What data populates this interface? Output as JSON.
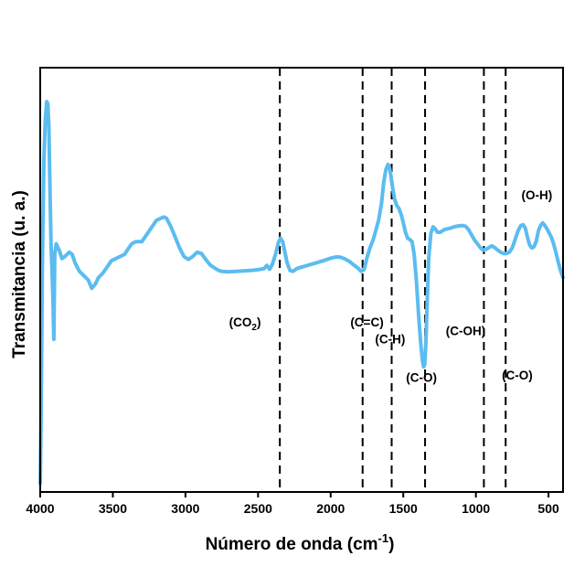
{
  "chart_data": {
    "type": "line",
    "xlabel": "Número de onda (cm",
    "xlabel_sup": "-1",
    "xlabel_end": ")",
    "ylabel": "Transmitancia (u. a.)",
    "xlim": [
      4000,
      400
    ],
    "x_reversed": true,
    "xticks": [
      4000,
      3500,
      3000,
      2500,
      2000,
      1500,
      1000,
      500
    ],
    "yticks_shown": false,
    "grid": false,
    "legend": "none",
    "colors": {
      "line": "#5bbcf0",
      "marker": "#000000"
    },
    "series": [
      {
        "points": [
          [
            4000,
            0.02
          ],
          [
            3995,
            0.15
          ],
          [
            3985,
            0.55
          ],
          [
            3975,
            0.78
          ],
          [
            3965,
            0.88
          ],
          [
            3955,
            0.92
          ],
          [
            3948,
            0.915
          ],
          [
            3940,
            0.86
          ],
          [
            3932,
            0.7
          ],
          [
            3925,
            0.58
          ],
          [
            3918,
            0.52
          ],
          [
            3912,
            0.45
          ],
          [
            3906,
            0.36
          ],
          [
            3900,
            0.56
          ],
          [
            3890,
            0.585
          ],
          [
            3870,
            0.57
          ],
          [
            3850,
            0.55
          ],
          [
            3830,
            0.555
          ],
          [
            3800,
            0.565
          ],
          [
            3780,
            0.56
          ],
          [
            3760,
            0.54
          ],
          [
            3730,
            0.52
          ],
          [
            3700,
            0.51
          ],
          [
            3670,
            0.5
          ],
          [
            3645,
            0.48
          ],
          [
            3620,
            0.49
          ],
          [
            3600,
            0.505
          ],
          [
            3570,
            0.515
          ],
          [
            3540,
            0.53
          ],
          [
            3510,
            0.545
          ],
          [
            3480,
            0.55
          ],
          [
            3450,
            0.555
          ],
          [
            3420,
            0.56
          ],
          [
            3400,
            0.57
          ],
          [
            3370,
            0.585
          ],
          [
            3340,
            0.59
          ],
          [
            3300,
            0.59
          ],
          [
            3270,
            0.605
          ],
          [
            3230,
            0.625
          ],
          [
            3200,
            0.64
          ],
          [
            3170,
            0.645
          ],
          [
            3150,
            0.648
          ],
          [
            3130,
            0.645
          ],
          [
            3100,
            0.625
          ],
          [
            3070,
            0.6
          ],
          [
            3040,
            0.575
          ],
          [
            3010,
            0.555
          ],
          [
            2980,
            0.548
          ],
          [
            2950,
            0.555
          ],
          [
            2920,
            0.565
          ],
          [
            2890,
            0.562
          ],
          [
            2860,
            0.548
          ],
          [
            2830,
            0.535
          ],
          [
            2800,
            0.528
          ],
          [
            2770,
            0.522
          ],
          [
            2750,
            0.52
          ],
          [
            2700,
            0.519
          ],
          [
            2650,
            0.52
          ],
          [
            2600,
            0.521
          ],
          [
            2550,
            0.522
          ],
          [
            2500,
            0.524
          ],
          [
            2460,
            0.526
          ],
          [
            2440,
            0.534
          ],
          [
            2420,
            0.525
          ],
          [
            2400,
            0.538
          ],
          [
            2380,
            0.56
          ],
          [
            2360,
            0.588
          ],
          [
            2345,
            0.598
          ],
          [
            2330,
            0.59
          ],
          [
            2315,
            0.565
          ],
          [
            2300,
            0.54
          ],
          [
            2280,
            0.522
          ],
          [
            2260,
            0.52
          ],
          [
            2230,
            0.527
          ],
          [
            2200,
            0.53
          ],
          [
            2150,
            0.535
          ],
          [
            2100,
            0.54
          ],
          [
            2050,
            0.545
          ],
          [
            2000,
            0.551
          ],
          [
            1960,
            0.554
          ],
          [
            1930,
            0.553
          ],
          [
            1900,
            0.549
          ],
          [
            1870,
            0.543
          ],
          [
            1840,
            0.535
          ],
          [
            1810,
            0.527
          ],
          [
            1790,
            0.52
          ],
          [
            1770,
            0.524
          ],
          [
            1750,
            0.552
          ],
          [
            1730,
            0.575
          ],
          [
            1710,
            0.592
          ],
          [
            1690,
            0.615
          ],
          [
            1670,
            0.64
          ],
          [
            1650,
            0.68
          ],
          [
            1635,
            0.73
          ],
          [
            1620,
            0.76
          ],
          [
            1605,
            0.772
          ],
          [
            1595,
            0.765
          ],
          [
            1585,
            0.745
          ],
          [
            1575,
            0.72
          ],
          [
            1560,
            0.69
          ],
          [
            1545,
            0.675
          ],
          [
            1530,
            0.668
          ],
          [
            1515,
            0.655
          ],
          [
            1500,
            0.635
          ],
          [
            1485,
            0.612
          ],
          [
            1470,
            0.598
          ],
          [
            1455,
            0.595
          ],
          [
            1440,
            0.59
          ],
          [
            1425,
            0.56
          ],
          [
            1410,
            0.5
          ],
          [
            1395,
            0.42
          ],
          [
            1380,
            0.35
          ],
          [
            1368,
            0.31
          ],
          [
            1360,
            0.295
          ],
          [
            1352,
            0.3
          ],
          [
            1345,
            0.35
          ],
          [
            1335,
            0.45
          ],
          [
            1325,
            0.55
          ],
          [
            1310,
            0.61
          ],
          [
            1295,
            0.625
          ],
          [
            1280,
            0.62
          ],
          [
            1265,
            0.612
          ],
          [
            1245,
            0.612
          ],
          [
            1225,
            0.617
          ],
          [
            1200,
            0.62
          ],
          [
            1175,
            0.622
          ],
          [
            1150,
            0.625
          ],
          [
            1120,
            0.627
          ],
          [
            1095,
            0.628
          ],
          [
            1070,
            0.626
          ],
          [
            1050,
            0.618
          ],
          [
            1030,
            0.606
          ],
          [
            1010,
            0.594
          ],
          [
            990,
            0.585
          ],
          [
            970,
            0.576
          ],
          [
            950,
            0.57
          ],
          [
            930,
            0.572
          ],
          [
            910,
            0.576
          ],
          [
            890,
            0.58
          ],
          [
            870,
            0.576
          ],
          [
            850,
            0.57
          ],
          [
            830,
            0.565
          ],
          [
            810,
            0.562
          ],
          [
            790,
            0.562
          ],
          [
            770,
            0.565
          ],
          [
            750,
            0.575
          ],
          [
            730,
            0.595
          ],
          [
            710,
            0.615
          ],
          [
            690,
            0.628
          ],
          [
            675,
            0.63
          ],
          [
            660,
            0.622
          ],
          [
            645,
            0.6
          ],
          [
            630,
            0.582
          ],
          [
            615,
            0.575
          ],
          [
            600,
            0.578
          ],
          [
            585,
            0.59
          ],
          [
            570,
            0.615
          ],
          [
            555,
            0.628
          ],
          [
            540,
            0.634
          ],
          [
            525,
            0.628
          ],
          [
            510,
            0.62
          ],
          [
            495,
            0.61
          ],
          [
            480,
            0.6
          ],
          [
            465,
            0.585
          ],
          [
            450,
            0.565
          ],
          [
            435,
            0.545
          ],
          [
            420,
            0.525
          ],
          [
            405,
            0.51
          ],
          [
            400,
            0.505
          ]
        ]
      }
    ],
    "markers": [
      {
        "x": 2350,
        "label_main": "(CO",
        "label_sub": "2",
        "label_end": ")",
        "label_x": 2590,
        "label_y": 0.39
      },
      {
        "x": 1780,
        "label_main": "(C=C)",
        "label_sub": "",
        "label_end": "",
        "label_x": 1750,
        "label_y": 0.39
      },
      {
        "x": 1580,
        "label_main": "(C-H)",
        "label_sub": "",
        "label_end": "",
        "label_x": 1590,
        "label_y": 0.35
      },
      {
        "x": 1350,
        "label_main": "(C-O)",
        "label_sub": "",
        "label_end": "",
        "label_x": 1375,
        "label_y": 0.26
      },
      {
        "x": 945,
        "label_main": "(C-OH)",
        "label_sub": "",
        "label_end": "",
        "label_x": 1070,
        "label_y": 0.37
      },
      {
        "x": 795,
        "label_main": "(C-O)",
        "label_sub": "",
        "label_end": "",
        "label_x": 715,
        "label_y": 0.265
      }
    ],
    "annotations": [
      {
        "text": "(O-H)",
        "x": 580,
        "y": 0.69
      }
    ]
  }
}
